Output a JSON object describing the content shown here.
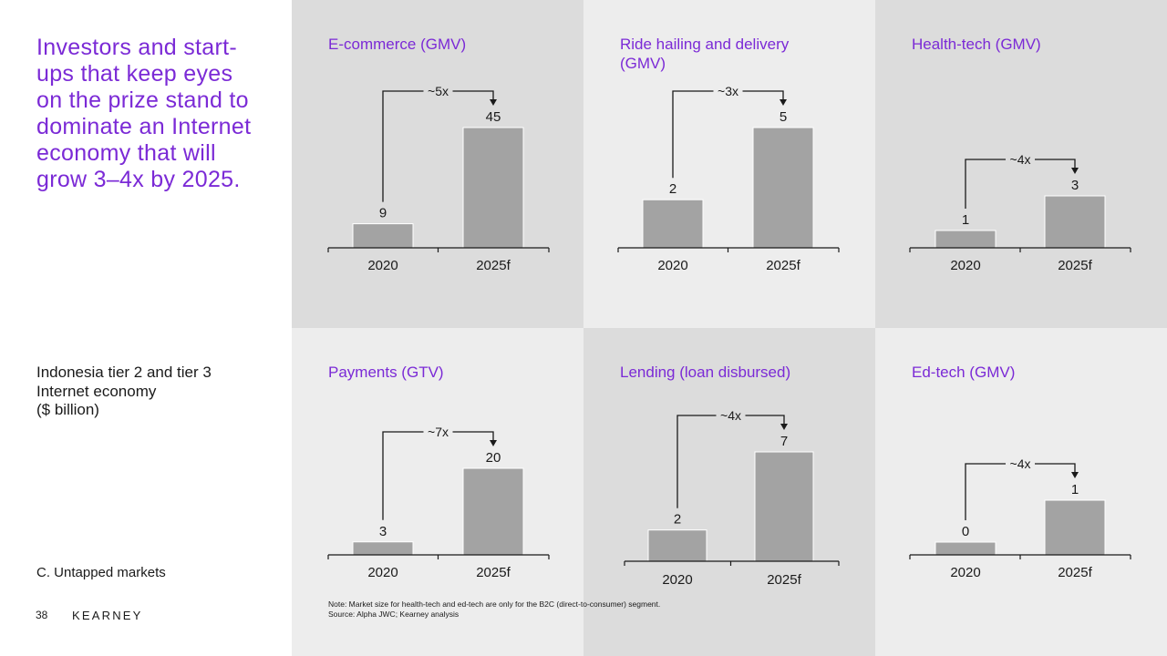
{
  "left": {
    "headline": "Investors and start-ups that keep eyes on the prize stand to dominate an Internet economy that will grow 3–4x by 2025.",
    "subtitle_lines": [
      "Indonesia tier 2 and tier 3",
      "Internet economy",
      "($ billion)"
    ],
    "section": "C. Untapped markets",
    "page_number": "38",
    "brand": "KEARNEY"
  },
  "footnote": {
    "note": "Note: Market size for health-tech and ed-tech are only for the B2C (direct-to-consumer) segment.",
    "source": "Source: Alpha JWC; Kearney analysis"
  },
  "colors": {
    "accent": "#7b2ad6",
    "bar": "#a3a3a3",
    "panel_dark": "#dcdcdc",
    "panel_light": "#ededed"
  },
  "chart_data": [
    {
      "type": "bar",
      "title_lines": [
        "E-commerce (GMV)"
      ],
      "categories": [
        "2020",
        "2025f"
      ],
      "values": [
        9,
        45
      ],
      "labels": [
        "9",
        "45"
      ],
      "multiplier": "~5x"
    },
    {
      "type": "bar",
      "title_lines": [
        "Ride hailing and delivery",
        "(GMV)"
      ],
      "categories": [
        "2020",
        "2025f"
      ],
      "values": [
        2,
        5
      ],
      "labels": [
        "2",
        "5"
      ],
      "multiplier": "~3x"
    },
    {
      "type": "bar",
      "title_lines": [
        "Health-tech (GMV)"
      ],
      "categories": [
        "2020",
        "2025f"
      ],
      "values": [
        1,
        3
      ],
      "labels": [
        "1",
        "3"
      ],
      "multiplier": "~4x"
    },
    {
      "type": "bar",
      "title_lines": [
        "Payments (GTV)"
      ],
      "categories": [
        "2020",
        "2025f"
      ],
      "values": [
        3,
        20
      ],
      "labels": [
        "3",
        "20"
      ],
      "multiplier": "~7x"
    },
    {
      "type": "bar",
      "title_lines": [
        "Lending (loan disbursed)"
      ],
      "categories": [
        "2020",
        "2025f"
      ],
      "values": [
        2,
        7
      ],
      "labels": [
        "2",
        "7"
      ],
      "multiplier": "~4x"
    },
    {
      "type": "bar",
      "title_lines": [
        "Ed-tech (GMV)"
      ],
      "categories": [
        "2020",
        "2025f"
      ],
      "values": [
        0,
        1
      ],
      "labels": [
        "0",
        "1"
      ],
      "multiplier": "~4x"
    }
  ]
}
